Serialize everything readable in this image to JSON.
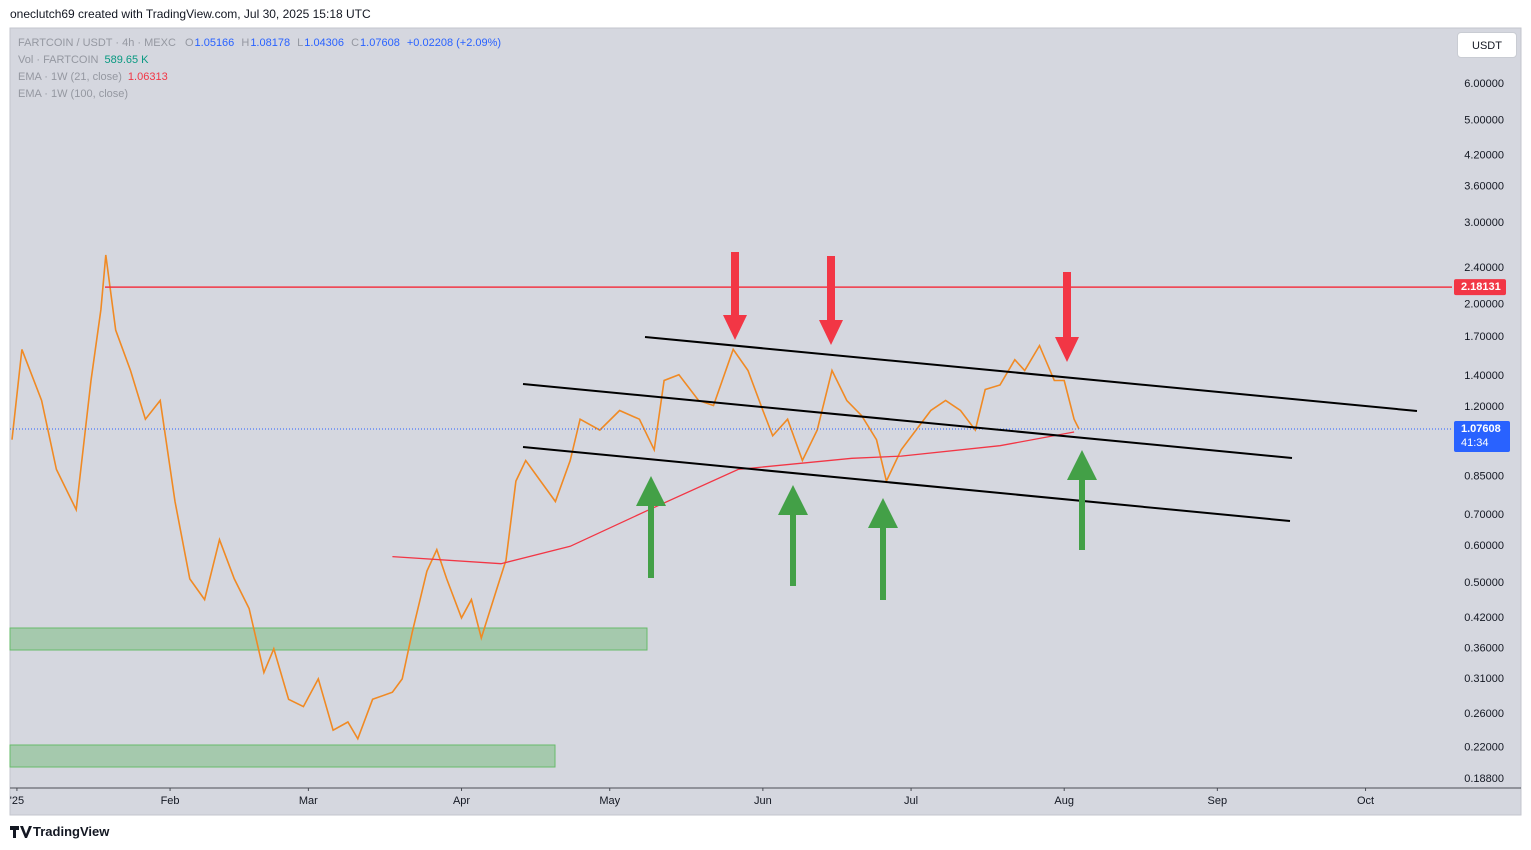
{
  "header": {
    "text": "oneclutch69 created with TradingView.com, Jul 30, 2025 15:18 UTC"
  },
  "footer": {
    "brand": "TradingView"
  },
  "chart_data": {
    "type": "line",
    "symbol": "FARTCOIN / USDT · 4h · MEXC",
    "legend": {
      "open_label": "O",
      "open": 1.05166,
      "high_label": "H",
      "high": 1.08178,
      "low_label": "L",
      "low": 1.04306,
      "close_label": "C",
      "close": 1.07608,
      "change": "+0.02208 (+2.09%)",
      "volume_name": "Vol · FARTCOIN",
      "volume": "589.65 K",
      "ema21_name": "EMA · 1W (21, close)",
      "ema21": 1.06313,
      "ema100_name": "EMA · 1W (100, close)"
    },
    "currency": "USDT",
    "countdown": "41:34",
    "log_scale": true,
    "grid": false,
    "xlim": [
      -1.4,
      290.5
    ],
    "xticks": [
      {
        "value": 0,
        "label": "'25"
      },
      {
        "value": 31,
        "label": "Feb"
      },
      {
        "value": 59,
        "label": "Mar"
      },
      {
        "value": 90,
        "label": "Apr"
      },
      {
        "value": 120,
        "label": "May"
      },
      {
        "value": 151,
        "label": "Jun"
      },
      {
        "value": 181,
        "label": "Jul"
      },
      {
        "value": 212,
        "label": "Aug"
      },
      {
        "value": 243,
        "label": "Sep"
      },
      {
        "value": 273,
        "label": "Oct"
      }
    ],
    "ylim": [
      0.18,
      7.93
    ],
    "yticks": [
      {
        "value": 6,
        "label": "6.00000"
      },
      {
        "value": 5,
        "label": "5.00000"
      },
      {
        "value": 4.2,
        "label": "4.20000"
      },
      {
        "value": 3.6,
        "label": "3.60000"
      },
      {
        "value": 3,
        "label": "3.00000"
      },
      {
        "value": 2.4,
        "label": "2.40000"
      },
      {
        "value": 2,
        "label": "2.00000"
      },
      {
        "value": 1.7,
        "label": "1.70000"
      },
      {
        "value": 1.4,
        "label": "1.40000"
      },
      {
        "value": 1.2,
        "label": "1.20000"
      },
      {
        "value": 0.85,
        "label": "0.85000"
      },
      {
        "value": 0.7,
        "label": "0.70000"
      },
      {
        "value": 0.6,
        "label": "0.60000"
      },
      {
        "value": 0.5,
        "label": "0.50000"
      },
      {
        "value": 0.42,
        "label": "0.42000"
      },
      {
        "value": 0.36,
        "label": "0.36000"
      },
      {
        "value": 0.31,
        "label": "0.31000"
      },
      {
        "value": 0.26,
        "label": "0.26000"
      },
      {
        "value": 0.22,
        "label": "0.22000"
      },
      {
        "value": 0.188,
        "label": "0.18800"
      }
    ],
    "series": [
      {
        "color": "#f08a24",
        "x": [
          -1,
          1,
          5,
          8,
          12,
          15,
          17,
          18,
          20,
          23,
          26,
          29,
          32,
          35,
          38,
          41,
          44,
          47,
          50,
          52,
          55,
          58,
          61,
          64,
          67,
          69,
          72,
          76,
          78,
          80,
          83,
          85,
          87,
          90,
          92,
          94,
          97,
          99,
          101,
          103,
          106,
          109,
          112,
          114,
          118,
          122,
          126,
          129,
          131,
          134,
          138,
          141,
          145,
          148,
          151,
          153,
          156,
          159,
          162,
          165,
          168,
          171,
          174,
          176,
          179,
          182,
          185,
          188,
          191,
          194,
          196,
          199,
          202,
          204,
          207,
          210,
          212,
          214,
          215
        ],
        "values": [
          1.02,
          1.6,
          1.24,
          0.88,
          0.72,
          1.37,
          1.95,
          2.56,
          1.76,
          1.44,
          1.13,
          1.24,
          0.75,
          0.51,
          0.46,
          0.62,
          0.51,
          0.44,
          0.32,
          0.36,
          0.28,
          0.27,
          0.31,
          0.24,
          0.25,
          0.23,
          0.28,
          0.29,
          0.31,
          0.39,
          0.53,
          0.59,
          0.51,
          0.42,
          0.46,
          0.38,
          0.48,
          0.56,
          0.83,
          0.92,
          0.83,
          0.75,
          0.92,
          1.13,
          1.07,
          1.18,
          1.13,
          0.97,
          1.37,
          1.41,
          1.24,
          1.21,
          1.6,
          1.44,
          1.18,
          1.04,
          1.13,
          0.92,
          1.07,
          1.44,
          1.24,
          1.15,
          1.02,
          0.83,
          0.97,
          1.07,
          1.18,
          1.24,
          1.18,
          1.07,
          1.31,
          1.34,
          1.52,
          1.44,
          1.63,
          1.37,
          1.37,
          1.13,
          1.076
        ]
      },
      {
        "color": "#f23645",
        "x": [
          76,
          98,
          112,
          128,
          146,
          169,
          179,
          199,
          214
        ],
        "values": [
          0.57,
          0.55,
          0.6,
          0.72,
          0.88,
          0.93,
          0.94,
          0.99,
          1.06
        ]
      }
    ],
    "hlines": [
      {
        "value": 2.18131,
        "color": "#f23645"
      }
    ],
    "last_price_color": "#2962ff"
  }
}
